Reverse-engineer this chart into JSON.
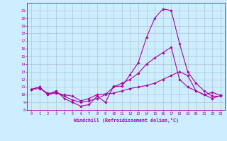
{
  "bg_color": "#cceeff",
  "line_color": "#aa00aa",
  "grid_color": "#aabbcc",
  "xlim": [
    -0.5,
    23.5
  ],
  "ylim": [
    8,
    22
  ],
  "yticks": [
    8,
    9,
    10,
    11,
    12,
    13,
    14,
    15,
    16,
    17,
    18,
    19,
    20,
    21
  ],
  "xticks": [
    0,
    1,
    2,
    3,
    4,
    5,
    6,
    7,
    8,
    9,
    10,
    11,
    12,
    13,
    14,
    15,
    16,
    17,
    18,
    19,
    20,
    21,
    22,
    23
  ],
  "xlabel": "Windchill (Refroidissement éolien,°C)",
  "line1_x": [
    0,
    1,
    2,
    3,
    4,
    5,
    6,
    7,
    8,
    9,
    10,
    11,
    12,
    13,
    14,
    15,
    16,
    17,
    18,
    19,
    20,
    21,
    22,
    23
  ],
  "line1_y": [
    10.7,
    11.0,
    10.0,
    10.5,
    9.5,
    9.0,
    8.5,
    8.7,
    9.8,
    9.0,
    11.1,
    11.1,
    12.6,
    14.2,
    17.5,
    20.0,
    21.2,
    21.0,
    16.7,
    13.0,
    11.5,
    10.5,
    9.8,
    9.8
  ],
  "line2_x": [
    0,
    1,
    2,
    3,
    4,
    5,
    6,
    7,
    8,
    9,
    10,
    11,
    12,
    13,
    14,
    15,
    16,
    17,
    18,
    19,
    20,
    21,
    22,
    23
  ],
  "line2_y": [
    10.7,
    11.0,
    10.0,
    10.3,
    9.8,
    9.3,
    9.0,
    9.2,
    9.5,
    10.0,
    11.0,
    11.5,
    12.0,
    12.8,
    14.0,
    14.8,
    15.5,
    16.2,
    12.0,
    11.0,
    10.5,
    10.0,
    10.3,
    9.9
  ],
  "line3_x": [
    0,
    1,
    2,
    3,
    4,
    5,
    6,
    7,
    8,
    9,
    10,
    11,
    12,
    13,
    14,
    15,
    16,
    17,
    18,
    19,
    20,
    21,
    22,
    23
  ],
  "line3_y": [
    10.7,
    10.8,
    10.2,
    10.2,
    10.0,
    9.8,
    9.2,
    9.5,
    10.0,
    10.1,
    10.2,
    10.5,
    10.8,
    11.0,
    11.2,
    11.5,
    12.0,
    12.5,
    13.0,
    12.5,
    10.5,
    10.0,
    9.5,
    9.9
  ]
}
